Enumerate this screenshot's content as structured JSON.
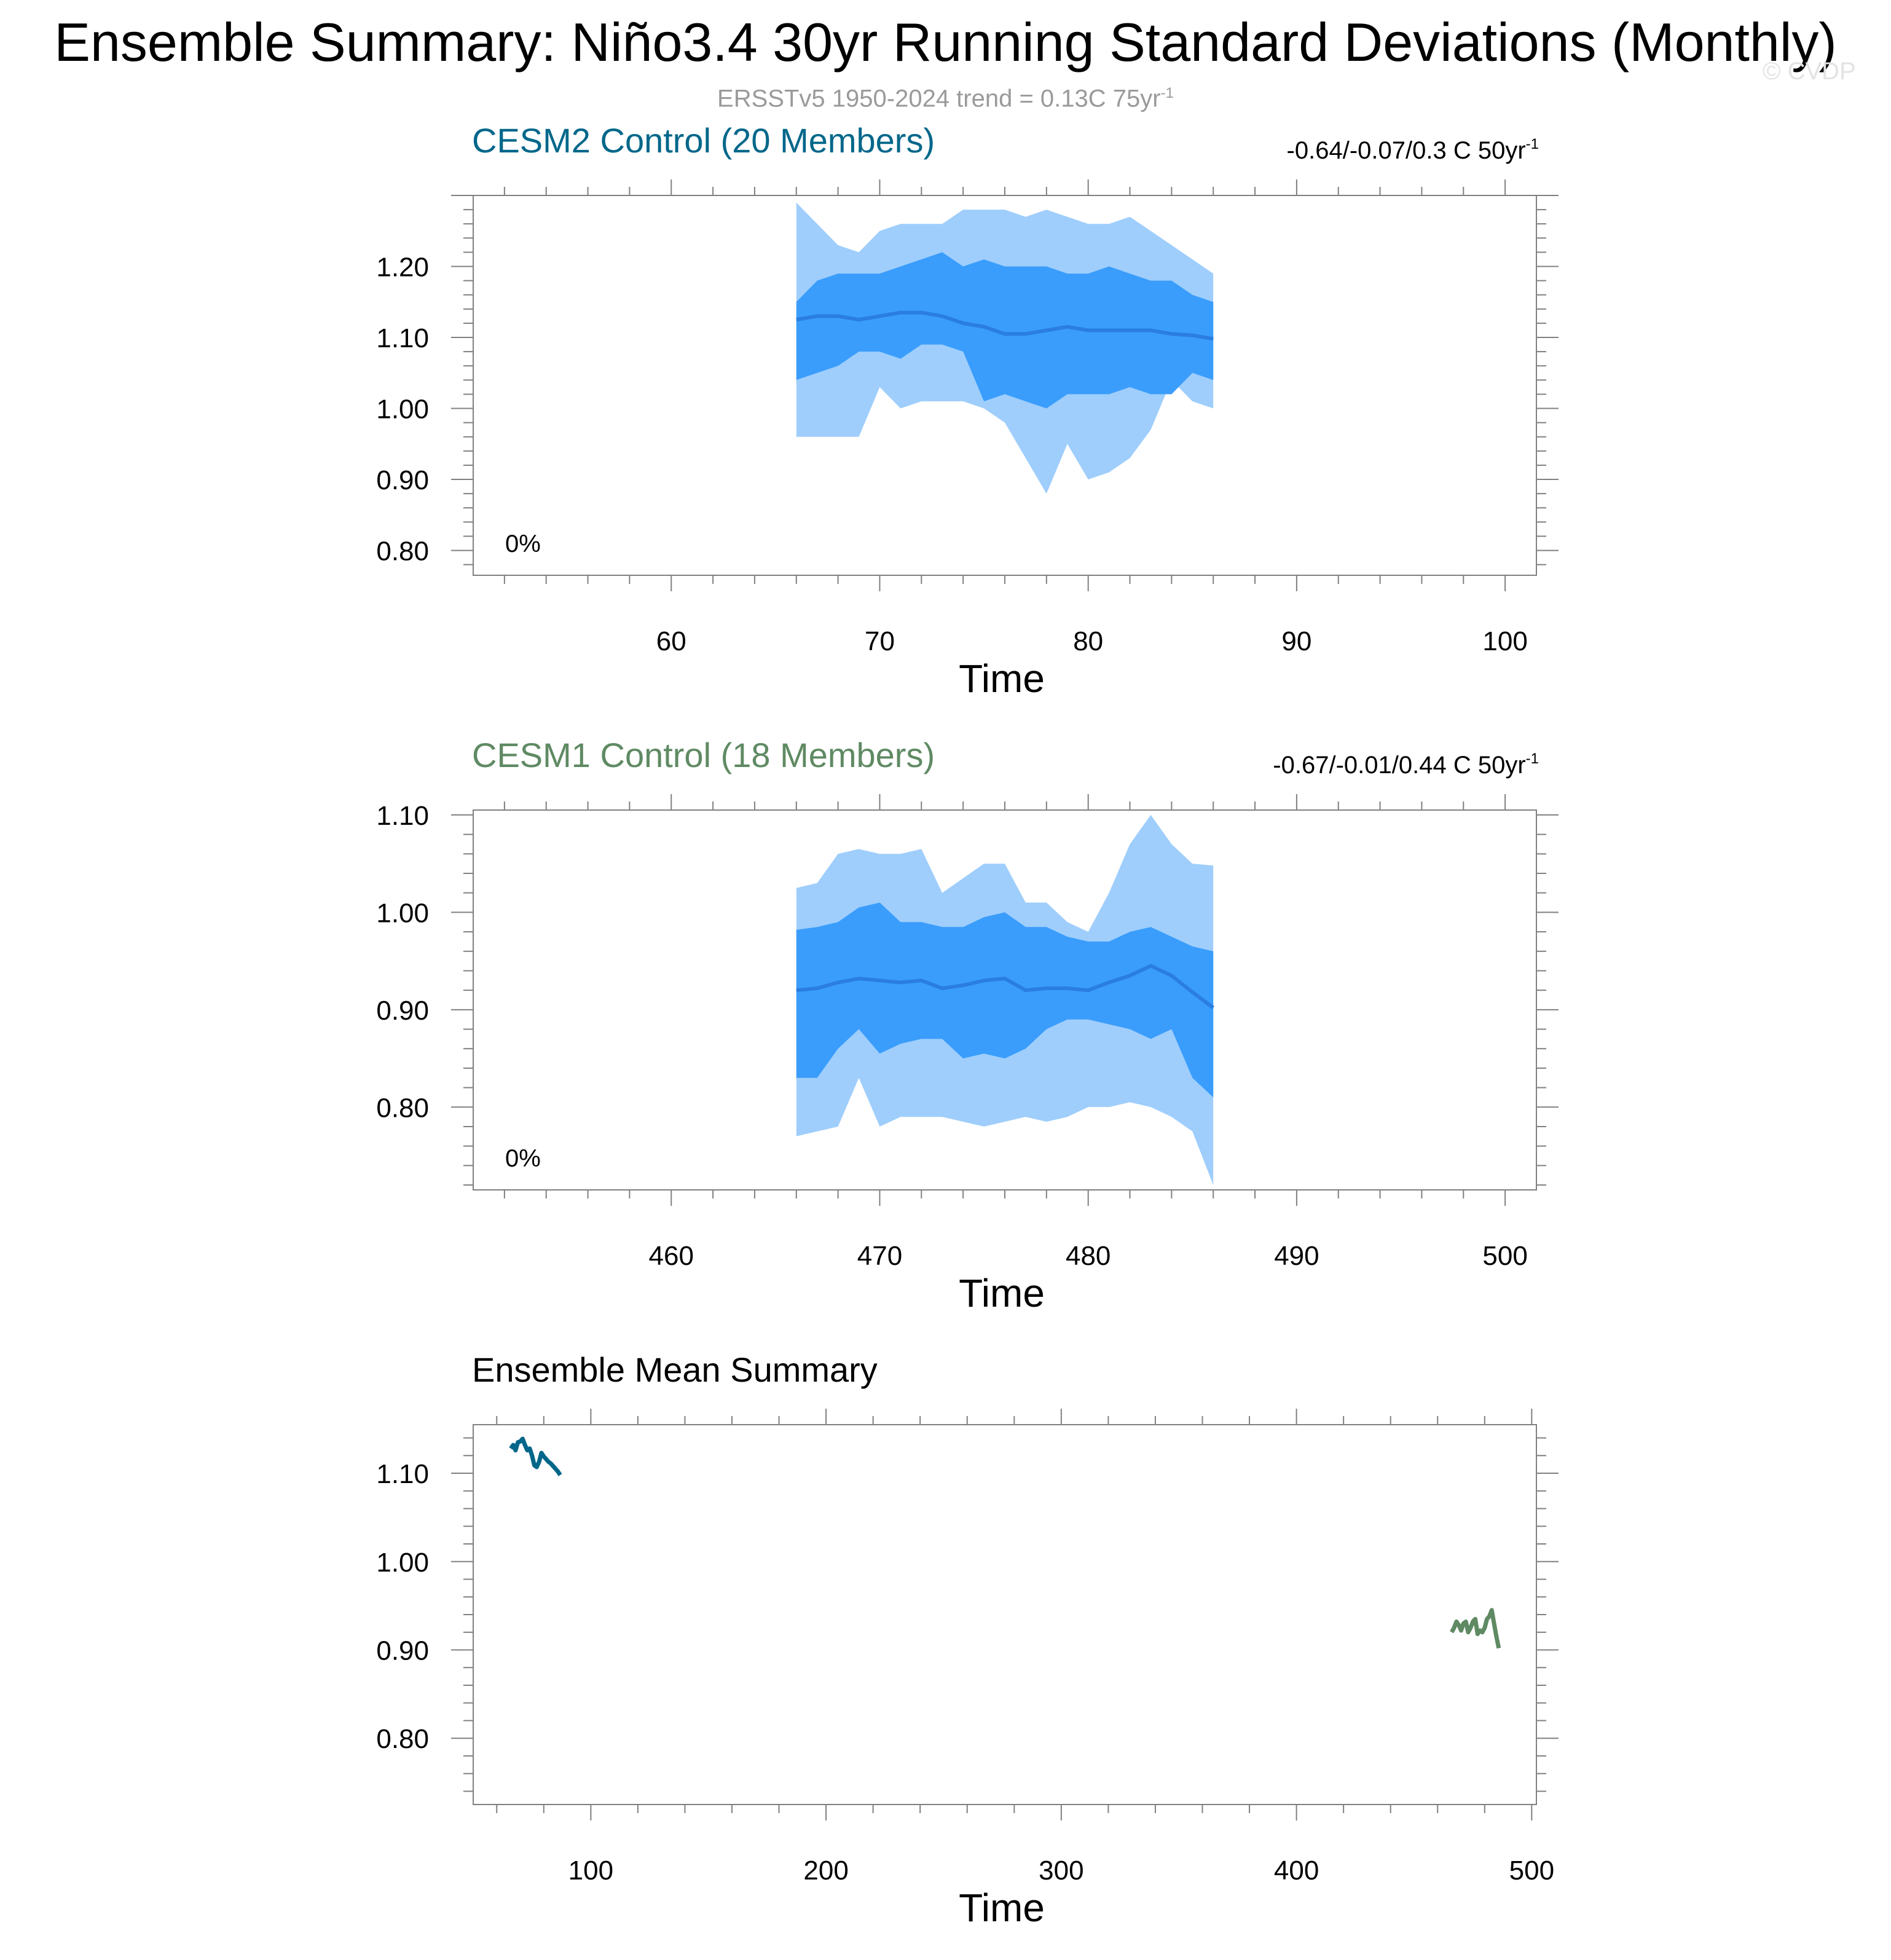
{
  "title": "Ensemble Summary: Niño3.4 30yr Running Standard Deviations (Monthly)",
  "subtitle": {
    "text": "ERSSTv5 1950-2024 trend = 0.13C 75yr",
    "sup": "-1"
  },
  "watermark": "© CVDP",
  "colors": {
    "outer_band": "#9fcefc",
    "inner_band": "#3a9dfc",
    "mean_line": "#2a7ee0",
    "cesm2": "#00678a",
    "cesm1": "#5f8a63",
    "frame": "#808080"
  },
  "chart_data": [
    {
      "type": "area",
      "title": "CESM2 Control (20 Members)",
      "title_color": "#00678a",
      "trend": {
        "text": "-0.64/-0.07/0.3 C 50yr",
        "sup": "-1"
      },
      "percent_label": "0%",
      "xlabel": "Time",
      "xlim": [
        50.5,
        101.5
      ],
      "ylim": [
        0.765,
        1.3
      ],
      "xticks": [
        60,
        70,
        80,
        90,
        100
      ],
      "xtick_labels": [
        "60",
        "70",
        "80",
        "90",
        "100"
      ],
      "yticks": [
        0.8,
        0.9,
        1.0,
        1.1,
        1.2
      ],
      "ytick_labels": [
        "0.80",
        "0.90",
        "1.00",
        "1.10",
        "1.20"
      ],
      "x": [
        66,
        67,
        68,
        69,
        70,
        71,
        72,
        73,
        74,
        75,
        76,
        77,
        78,
        79,
        80,
        81,
        82,
        83,
        84,
        85,
        86
      ],
      "max": [
        1.29,
        1.26,
        1.23,
        1.22,
        1.25,
        1.26,
        1.26,
        1.26,
        1.28,
        1.28,
        1.28,
        1.27,
        1.28,
        1.27,
        1.26,
        1.26,
        1.27,
        1.25,
        1.23,
        1.21,
        1.19
      ],
      "p90": [
        1.15,
        1.18,
        1.19,
        1.19,
        1.19,
        1.2,
        1.21,
        1.22,
        1.2,
        1.21,
        1.2,
        1.2,
        1.2,
        1.19,
        1.19,
        1.2,
        1.19,
        1.18,
        1.18,
        1.16,
        1.15
      ],
      "mean": [
        1.125,
        1.13,
        1.13,
        1.125,
        1.13,
        1.135,
        1.135,
        1.13,
        1.12,
        1.115,
        1.105,
        1.105,
        1.11,
        1.115,
        1.11,
        1.11,
        1.11,
        1.11,
        1.105,
        1.103,
        1.098
      ],
      "p10": [
        1.04,
        1.05,
        1.06,
        1.08,
        1.08,
        1.07,
        1.09,
        1.09,
        1.08,
        1.01,
        1.02,
        1.01,
        1.0,
        1.02,
        1.02,
        1.02,
        1.03,
        1.02,
        1.02,
        1.05,
        1.04
      ],
      "min": [
        0.96,
        0.96,
        0.96,
        0.96,
        1.03,
        1.0,
        1.01,
        1.01,
        1.01,
        1.0,
        0.98,
        0.93,
        0.88,
        0.95,
        0.9,
        0.91,
        0.93,
        0.97,
        1.04,
        1.01,
        1.0
      ]
    },
    {
      "type": "area",
      "title": "CESM1 Control (18 Members)",
      "title_color": "#5f8a63",
      "trend": {
        "text": "-0.67/-0.01/0.44 C 50yr",
        "sup": "-1"
      },
      "percent_label": "0%",
      "xlabel": "Time",
      "xlim": [
        450.5,
        501.5
      ],
      "ylim": [
        0.715,
        1.105
      ],
      "xticks": [
        460,
        470,
        480,
        490,
        500
      ],
      "xtick_labels": [
        "460",
        "470",
        "480",
        "490",
        "500"
      ],
      "yticks": [
        0.8,
        0.9,
        1.0,
        1.1
      ],
      "ytick_labels": [
        "0.80",
        "0.90",
        "1.00",
        "1.10"
      ],
      "x": [
        466,
        467,
        468,
        469,
        470,
        471,
        472,
        473,
        474,
        475,
        476,
        477,
        478,
        479,
        480,
        481,
        482,
        483,
        484,
        485,
        486
      ],
      "max": [
        1.025,
        1.03,
        1.06,
        1.065,
        1.06,
        1.06,
        1.065,
        1.02,
        1.035,
        1.05,
        1.05,
        1.01,
        1.01,
        0.99,
        0.98,
        1.02,
        1.07,
        1.1,
        1.07,
        1.05,
        1.048
      ],
      "p90": [
        0.982,
        0.985,
        0.99,
        1.005,
        1.01,
        0.99,
        0.99,
        0.985,
        0.985,
        0.995,
        1.0,
        0.985,
        0.985,
        0.975,
        0.97,
        0.97,
        0.98,
        0.985,
        0.975,
        0.965,
        0.96
      ],
      "mean": [
        0.92,
        0.922,
        0.928,
        0.932,
        0.93,
        0.928,
        0.93,
        0.922,
        0.925,
        0.93,
        0.932,
        0.92,
        0.922,
        0.922,
        0.92,
        0.928,
        0.935,
        0.945,
        0.935,
        0.918,
        0.902
      ],
      "p10": [
        0.83,
        0.83,
        0.86,
        0.88,
        0.855,
        0.865,
        0.87,
        0.87,
        0.85,
        0.855,
        0.85,
        0.86,
        0.88,
        0.89,
        0.89,
        0.885,
        0.88,
        0.87,
        0.88,
        0.83,
        0.81
      ],
      "min": [
        0.77,
        0.775,
        0.78,
        0.83,
        0.78,
        0.79,
        0.79,
        0.79,
        0.785,
        0.78,
        0.785,
        0.79,
        0.785,
        0.79,
        0.8,
        0.8,
        0.805,
        0.8,
        0.79,
        0.775,
        0.72
      ]
    },
    {
      "type": "line",
      "title": "Ensemble Mean Summary",
      "title_color": "#000000",
      "xlabel": "Time",
      "xlim": [
        50,
        502
      ],
      "ylim": [
        0.725,
        1.155
      ],
      "xticks": [
        100,
        200,
        300,
        400,
        500
      ],
      "xtick_labels": [
        "100",
        "200",
        "300",
        "400",
        "500"
      ],
      "yticks": [
        0.8,
        0.9,
        1.0,
        1.1
      ],
      "ytick_labels": [
        "0.80",
        "0.90",
        "1.00",
        "1.10"
      ],
      "series": [
        {
          "color": "#00678a",
          "x": [
            66,
            67,
            68,
            69,
            70,
            71,
            72,
            73,
            74,
            75,
            76,
            77,
            78,
            79,
            80,
            81,
            82,
            83,
            84,
            85,
            86,
            87
          ],
          "y": [
            1.128,
            1.132,
            1.126,
            1.135,
            1.136,
            1.139,
            1.132,
            1.126,
            1.128,
            1.12,
            1.109,
            1.107,
            1.113,
            1.123,
            1.119,
            1.116,
            1.113,
            1.111,
            1.108,
            1.105,
            1.102,
            1.098
          ]
        },
        {
          "color": "#5f8a63",
          "x": [
            466,
            467,
            468,
            469,
            470,
            471,
            472,
            473,
            474,
            475,
            476,
            477,
            478,
            479,
            480,
            481,
            482,
            483,
            484,
            485,
            486
          ],
          "y": [
            0.92,
            0.925,
            0.932,
            0.928,
            0.922,
            0.93,
            0.932,
            0.92,
            0.925,
            0.932,
            0.935,
            0.918,
            0.922,
            0.92,
            0.925,
            0.935,
            0.938,
            0.945,
            0.93,
            0.915,
            0.902
          ]
        }
      ]
    }
  ]
}
